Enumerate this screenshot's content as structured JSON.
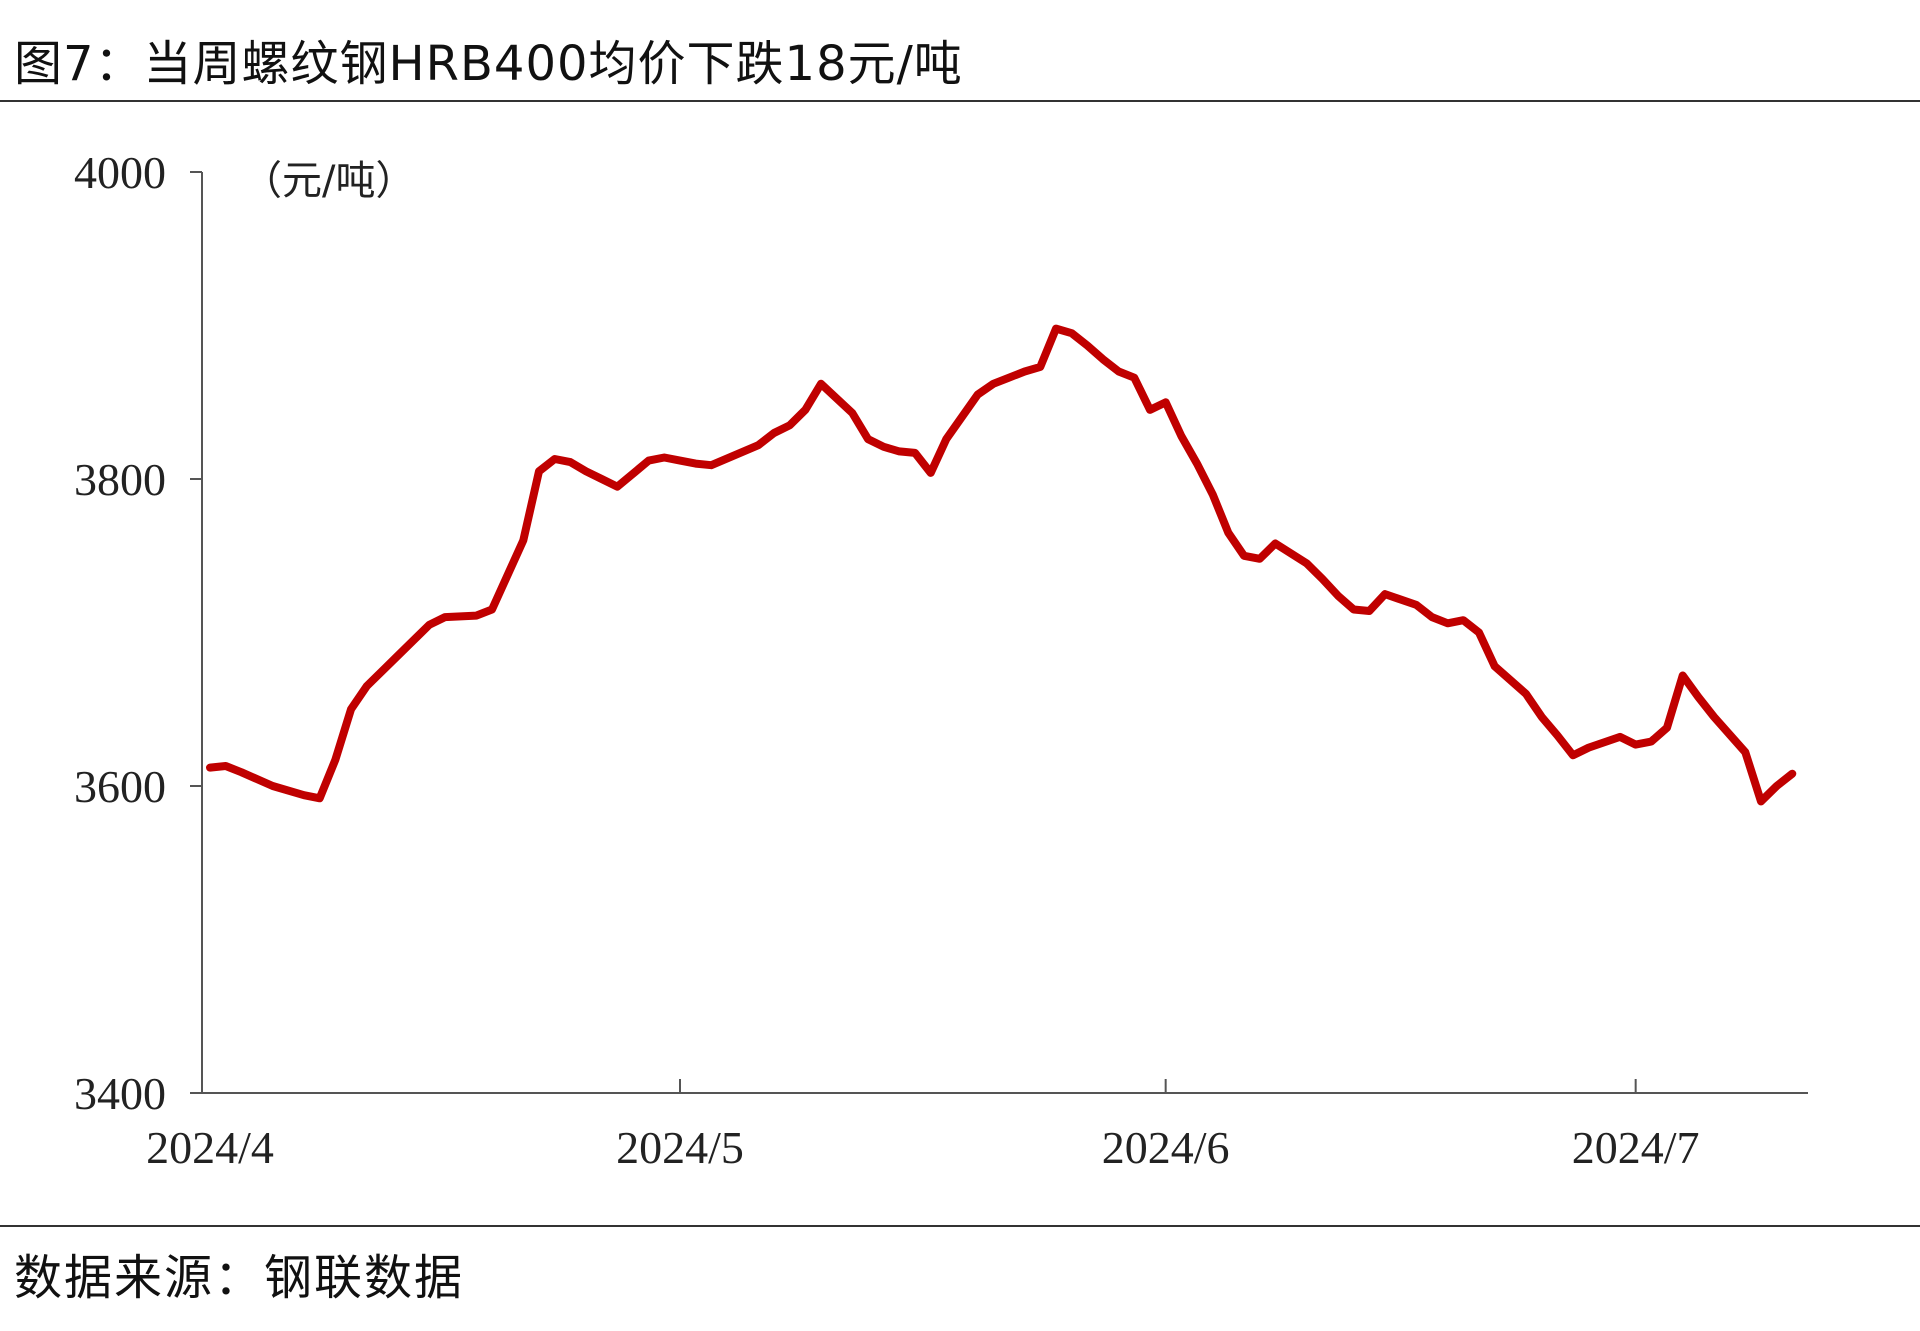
{
  "figure": {
    "title": "图7：当周螺纹钢HRB400均价下跌18元/吨",
    "source": "数据来源：钢联数据"
  },
  "chart_data": {
    "type": "line",
    "title": "图7：当周螺纹钢HRB400均价下跌18元/吨",
    "unit_label": "（元/吨）",
    "xlabel": "",
    "ylabel": "",
    "ylim": [
      3400,
      4000
    ],
    "yticks": [
      3400,
      3600,
      3800,
      4000
    ],
    "xticks": [
      "2024/4",
      "2024/5",
      "2024/6",
      "2024/7"
    ],
    "grid": false,
    "legend": "none",
    "series": [
      {
        "color": "#c00000",
        "x": [
          "2024-04-01",
          "2024-04-02",
          "2024-04-03",
          "2024-04-05",
          "2024-04-07",
          "2024-04-08",
          "2024-04-09",
          "2024-04-10",
          "2024-04-11",
          "2024-04-13",
          "2024-04-15",
          "2024-04-16",
          "2024-04-18",
          "2024-04-19",
          "2024-04-21",
          "2024-04-22",
          "2024-04-23",
          "2024-04-24",
          "2024-04-25",
          "2024-04-26",
          "2024-04-27",
          "2024-04-29",
          "2024-04-30",
          "2024-05-01",
          "2024-05-02",
          "2024-05-03",
          "2024-05-06",
          "2024-05-07",
          "2024-05-08",
          "2024-05-09",
          "2024-05-10",
          "2024-05-12",
          "2024-05-13",
          "2024-05-14",
          "2024-05-15",
          "2024-05-16",
          "2024-05-17",
          "2024-05-18",
          "2024-05-20",
          "2024-05-21",
          "2024-05-23",
          "2024-05-24",
          "2024-05-25",
          "2024-05-26",
          "2024-05-27",
          "2024-05-28",
          "2024-05-29",
          "2024-05-30",
          "2024-05-31",
          "2024-06-01",
          "2024-06-02",
          "2024-06-03",
          "2024-06-04",
          "2024-06-05",
          "2024-06-06",
          "2024-06-07",
          "2024-06-08",
          "2024-06-10",
          "2024-06-11",
          "2024-06-12",
          "2024-06-13",
          "2024-06-14",
          "2024-06-15",
          "2024-06-17",
          "2024-06-18",
          "2024-06-19",
          "2024-06-20",
          "2024-06-21",
          "2024-06-22",
          "2024-06-24",
          "2024-06-25",
          "2024-06-26",
          "2024-06-27",
          "2024-06-28",
          "2024-06-30",
          "2024-07-01",
          "2024-07-02",
          "2024-07-03",
          "2024-07-04",
          "2024-07-05",
          "2024-07-06",
          "2024-07-08",
          "2024-07-09",
          "2024-07-10",
          "2024-07-11"
        ],
        "y": [
          3612,
          3613,
          3609,
          3600,
          3594,
          3592,
          3617,
          3650,
          3665,
          3685,
          3705,
          3710,
          3711,
          3715,
          3760,
          3805,
          3813,
          3811,
          3805,
          3800,
          3795,
          3812,
          3814,
          3812,
          3810,
          3809,
          3822,
          3830,
          3835,
          3845,
          3862,
          3843,
          3826,
          3821,
          3818,
          3817,
          3804,
          3826,
          3855,
          3862,
          3870,
          3873,
          3898,
          3895,
          3887,
          3878,
          3870,
          3866,
          3845,
          3850,
          3828,
          3810,
          3790,
          3765,
          3750,
          3748,
          3758,
          3745,
          3735,
          3724,
          3715,
          3714,
          3725,
          3718,
          3710,
          3706,
          3708,
          3700,
          3678,
          3660,
          3645,
          3633,
          3620,
          3625,
          3632,
          3627,
          3629,
          3638,
          3672,
          3658,
          3645,
          3622,
          3590,
          3600,
          3608
        ]
      }
    ]
  }
}
